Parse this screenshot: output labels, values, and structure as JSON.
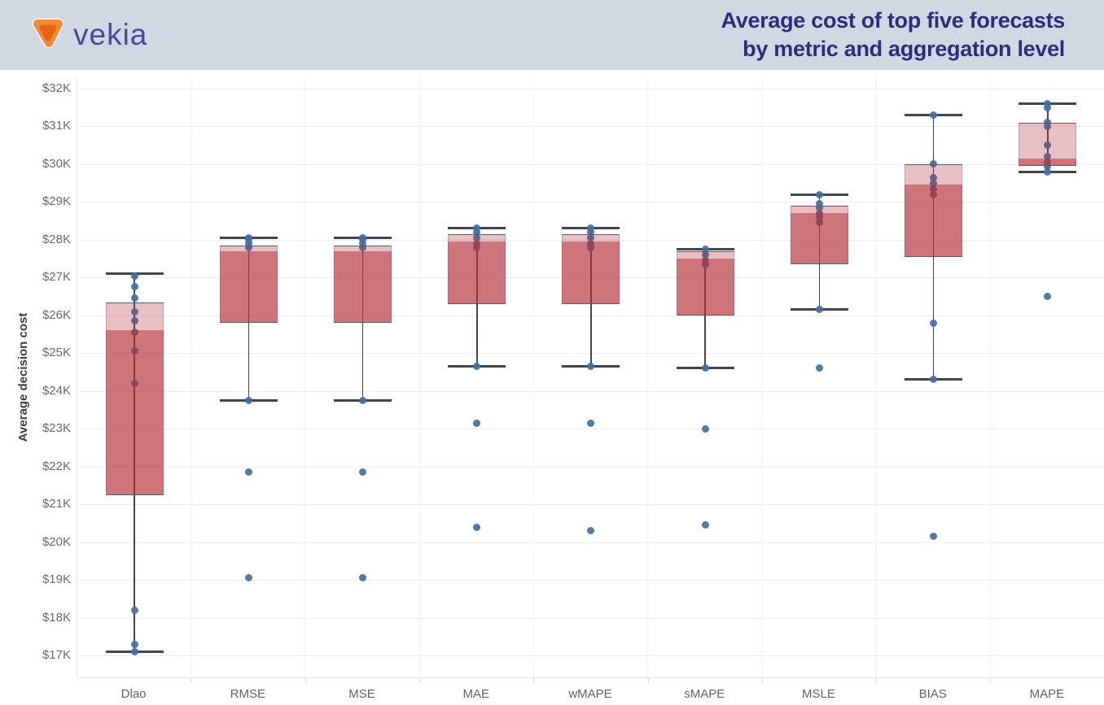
{
  "header": {
    "logo_text": "vekia",
    "title_line1": "Average cost of top five forecasts",
    "title_line2": "by metric and aggregation level"
  },
  "chart_data": {
    "type": "boxplot",
    "title": "Average cost of top five forecasts by metric and aggregation level",
    "ylabel": "Average decision cost",
    "y_unit": "USD thousands",
    "ylim": [
      16.4,
      32.3
    ],
    "grid": "horizontal",
    "legend": "none",
    "y_ticks": [
      {
        "value": 32,
        "label": "$32K"
      },
      {
        "value": 31,
        "label": "$31K"
      },
      {
        "value": 30,
        "label": "$30K"
      },
      {
        "value": 29,
        "label": "$29K"
      },
      {
        "value": 28,
        "label": "$28K"
      },
      {
        "value": 27,
        "label": "$27K"
      },
      {
        "value": 26,
        "label": "$26K"
      },
      {
        "value": 25,
        "label": "$25K"
      },
      {
        "value": 24,
        "label": "$24K"
      },
      {
        "value": 23,
        "label": "$23K"
      },
      {
        "value": 22,
        "label": "$22K"
      },
      {
        "value": 21,
        "label": "$21K"
      },
      {
        "value": 20,
        "label": "$20K"
      },
      {
        "value": 19,
        "label": "$19K"
      },
      {
        "value": 18,
        "label": "$18K"
      },
      {
        "value": 17,
        "label": "$17K"
      }
    ],
    "categories": [
      "Dlao",
      "RMSE",
      "MSE",
      "MAE",
      "wMAPE",
      "sMAPE",
      "MSLE",
      "BIAS",
      "MAPE"
    ],
    "series": [
      {
        "label": "Dlao",
        "whisker_high": 27.1,
        "q3": 26.35,
        "median": 25.6,
        "q1": 21.25,
        "whisker_low": 17.1,
        "points": [
          27.05,
          26.75,
          26.45,
          26.1,
          25.85,
          25.55,
          25.05,
          24.2,
          18.2,
          17.3,
          17.1
        ]
      },
      {
        "label": "RMSE",
        "whisker_high": 28.05,
        "q3": 27.85,
        "median": 27.7,
        "q1": 25.8,
        "whisker_low": 23.75,
        "points": [
          28.05,
          28.0,
          27.9,
          27.8,
          23.75,
          21.85,
          19.05
        ]
      },
      {
        "label": "MSE",
        "whisker_high": 28.05,
        "q3": 27.85,
        "median": 27.7,
        "q1": 25.8,
        "whisker_low": 23.75,
        "points": [
          28.05,
          28.0,
          27.9,
          27.8,
          23.75,
          21.85,
          19.05
        ]
      },
      {
        "label": "MAE",
        "whisker_high": 28.3,
        "q3": 28.15,
        "median": 27.95,
        "q1": 26.3,
        "whisker_low": 24.65,
        "points": [
          28.3,
          28.2,
          28.05,
          27.9,
          27.8,
          24.65,
          23.15,
          20.4
        ]
      },
      {
        "label": "wMAPE",
        "whisker_high": 28.3,
        "q3": 28.15,
        "median": 27.95,
        "q1": 26.3,
        "whisker_low": 24.65,
        "points": [
          28.3,
          28.2,
          28.05,
          27.9,
          27.8,
          24.65,
          23.15,
          20.3
        ]
      },
      {
        "label": "sMAPE",
        "whisker_high": 27.75,
        "q3": 27.7,
        "median": 27.5,
        "q1": 26.0,
        "whisker_low": 24.6,
        "points": [
          27.75,
          27.6,
          27.45,
          27.35,
          24.6,
          23.0,
          20.45
        ]
      },
      {
        "label": "MSLE",
        "whisker_high": 29.2,
        "q3": 28.9,
        "median": 28.7,
        "q1": 27.35,
        "whisker_low": 26.15,
        "points": [
          29.2,
          28.95,
          28.85,
          28.7,
          28.6,
          28.45,
          26.15,
          24.6
        ]
      },
      {
        "label": "BIAS",
        "whisker_high": 31.3,
        "q3": 30.0,
        "median": 29.45,
        "q1": 27.55,
        "whisker_low": 24.3,
        "points": [
          31.3,
          30.0,
          29.65,
          29.5,
          29.35,
          29.2,
          25.8,
          24.3,
          20.15
        ]
      },
      {
        "label": "MAPE",
        "whisker_high": 31.6,
        "q3": 31.1,
        "median": 30.15,
        "q1": 29.95,
        "whisker_low": 29.8,
        "points": [
          31.6,
          31.5,
          31.1,
          31.0,
          30.5,
          30.2,
          30.05,
          29.95,
          29.8,
          26.5
        ]
      }
    ],
    "box_style": {
      "upper_half": "light pink (median to Q3)",
      "lower_half": "dark red (Q1 to median)"
    }
  },
  "colors": {
    "header_bg": "#d2d8e1",
    "title_text": "#2e2c7d",
    "logo_text": "#4a47a1",
    "logo_orange_outer": "#f28c33",
    "logo_orange_inner": "#e8641a",
    "box_base": "#b42d37",
    "dot": "#44709e",
    "whisker": "#3f4650",
    "grid_line": "#ededf1",
    "axis_text": "#666a72"
  }
}
